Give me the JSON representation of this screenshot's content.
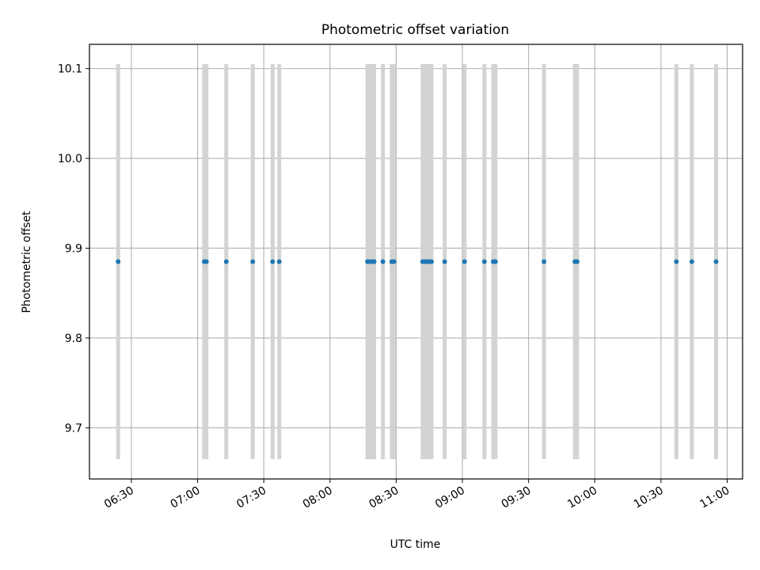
{
  "chart_data": {
    "type": "scatter",
    "title": "Photometric offset variation",
    "xlabel": "UTC time",
    "ylabel": "Photometric offset",
    "xlim": [
      "06:11",
      "11:07"
    ],
    "ylim": [
      9.643,
      10.127
    ],
    "grid": true,
    "xticks": [
      "06:30",
      "07:00",
      "07:30",
      "08:00",
      "08:30",
      "09:00",
      "09:30",
      "10:00",
      "10:30",
      "11:00"
    ],
    "yticks": [
      9.7,
      9.8,
      9.9,
      10.0,
      10.1
    ],
    "ytick_labels": [
      "9.7",
      "9.8",
      "9.9",
      "10.0",
      "10.1"
    ],
    "point_color": "#1f77b4",
    "band_color": "#d3d3d3",
    "band_range": [
      9.665,
      10.105
    ],
    "series": [
      {
        "x": [
          "06:24",
          "07:03",
          "07:04",
          "07:13",
          "07:25",
          "07:34",
          "07:37",
          "08:17",
          "08:18",
          "08:19",
          "08:20",
          "08:24",
          "08:28",
          "08:29",
          "08:42",
          "08:43",
          "08:44",
          "08:45",
          "08:46",
          "08:52",
          "09:01",
          "09:10",
          "09:14",
          "09:15",
          "09:37",
          "09:51",
          "09:52",
          "10:37",
          "10:44",
          "10:55"
        ],
        "y": [
          9.885,
          9.885,
          9.885,
          9.885,
          9.885,
          9.885,
          9.885,
          9.885,
          9.885,
          9.885,
          9.885,
          9.885,
          9.885,
          9.885,
          9.885,
          9.885,
          9.885,
          9.885,
          9.885,
          9.885,
          9.885,
          9.885,
          9.885,
          9.885,
          9.885,
          9.885,
          9.885,
          9.885,
          9.885,
          9.885
        ]
      }
    ]
  }
}
